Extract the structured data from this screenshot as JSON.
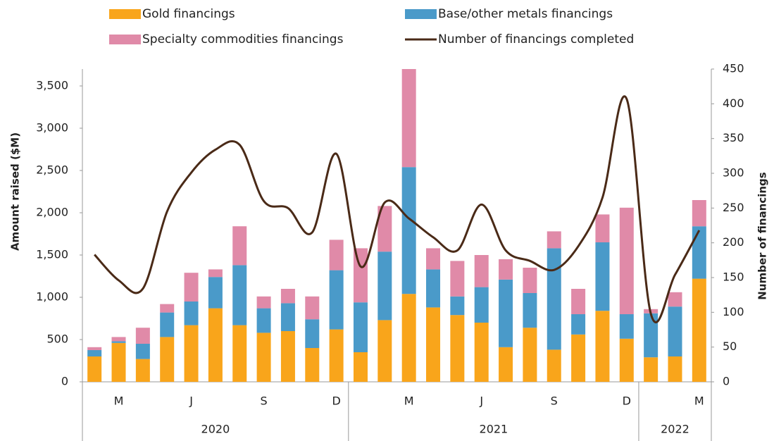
{
  "chart_data": {
    "type": "bar",
    "categories": [
      null,
      "M",
      null,
      null,
      "J",
      null,
      null,
      "S",
      null,
      null,
      "D",
      null,
      null,
      "M",
      null,
      null,
      "J",
      null,
      null,
      "S",
      null,
      null,
      "D",
      null,
      null,
      "M"
    ],
    "groups": [
      {
        "label": "2020",
        "count": 11
      },
      {
        "label": "2021",
        "count": 12
      },
      {
        "label": "2022",
        "count": 3
      }
    ],
    "series": [
      {
        "name": "Gold financings",
        "color": "#f9a51b",
        "values": [
          300,
          460,
          270,
          530,
          670,
          870,
          670,
          580,
          600,
          400,
          620,
          350,
          730,
          1040,
          880,
          790,
          700,
          410,
          640,
          380,
          560,
          840,
          510,
          290,
          300,
          1220
        ]
      },
      {
        "name": "Base/other metals financings",
        "color": "#4a9ac9",
        "values": [
          75,
          20,
          180,
          290,
          280,
          370,
          710,
          290,
          330,
          340,
          700,
          590,
          810,
          1500,
          450,
          220,
          420,
          800,
          410,
          1200,
          240,
          810,
          290,
          520,
          590,
          620
        ]
      },
      {
        "name": "Specialty commodities financings",
        "color": "#e08aa8",
        "values": [
          35,
          50,
          190,
          100,
          340,
          90,
          460,
          140,
          170,
          270,
          360,
          640,
          540,
          1160,
          250,
          420,
          380,
          240,
          300,
          200,
          300,
          330,
          1260,
          50,
          170,
          310
        ]
      },
      {
        "name": "Number of financings completed",
        "color": "#4a2a17",
        "type": "line",
        "axis": "y2",
        "values": [
          183,
          146,
          134,
          245,
          301,
          334,
          341,
          260,
          250,
          215,
          328,
          166,
          258,
          235,
          208,
          189,
          255,
          189,
          174,
          161,
          195,
          265,
          407,
          98,
          154,
          218
        ]
      }
    ],
    "ylabel": "Amount raised ($M)",
    "y2label": "Number of financings",
    "ylim": [
      0,
      3700
    ],
    "yticks": [
      0,
      500,
      {
        "value": 1000,
        "label": "1,000"
      },
      {
        "value": 1500,
        "label": "1,500"
      },
      {
        "value": 2000,
        "label": "2,000"
      },
      {
        "value": 2500,
        "label": "2,500"
      },
      {
        "value": 3000,
        "label": "3,000"
      },
      {
        "value": 3500,
        "label": "3,500"
      }
    ],
    "y2lim": [
      0,
      450
    ],
    "y2ticks": [
      0,
      50,
      100,
      150,
      200,
      250,
      300,
      350,
      400,
      450
    ],
    "stacked": true
  }
}
